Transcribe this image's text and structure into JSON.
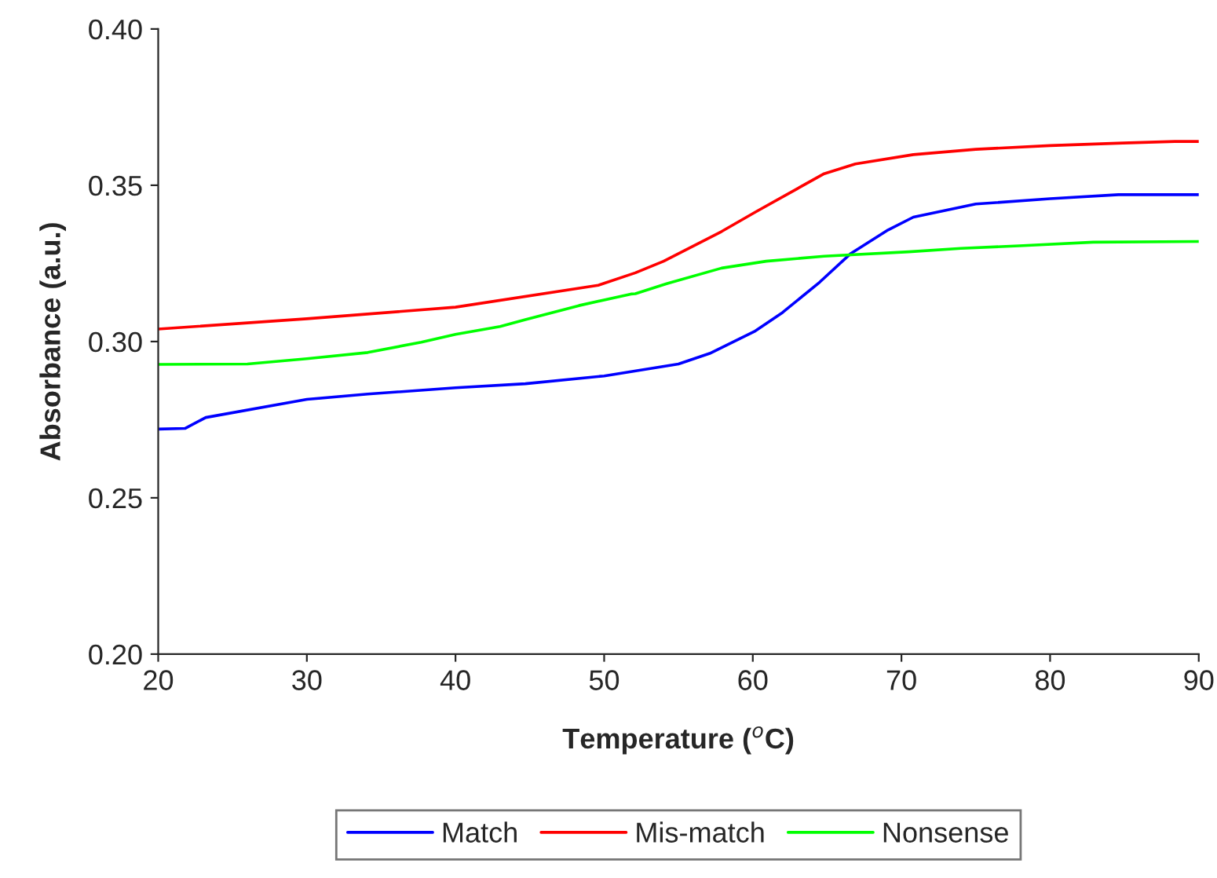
{
  "chart_data": {
    "type": "line",
    "xlabel": "Temperature ($^{o}$C)",
    "ylabel": "Absorbance (a.u.)",
    "xlim": [
      20,
      90
    ],
    "xticks": [
      20,
      30,
      40,
      50,
      60,
      70,
      80,
      90
    ],
    "ylim": [
      0.2,
      0.4
    ],
    "yticks": [
      {
        "value": 0.2,
        "label": "0.20"
      },
      {
        "value": 0.25,
        "label": "0.25"
      },
      {
        "value": 0.3,
        "label": "0.30"
      },
      {
        "value": 0.35,
        "label": "0.35"
      },
      {
        "value": 0.4,
        "label": "0.40"
      }
    ],
    "grid": false,
    "legend": "bottom",
    "marker": "none",
    "line_style": "solid",
    "series": [
      {
        "name": "Match",
        "color": "#0000ff",
        "x": [
          20,
          21.8,
          23.2,
          30,
          34.1,
          40,
          44.7,
          50,
          55,
          57.1,
          60.1,
          62,
          64.5,
          66.6,
          69.1,
          70.8,
          75,
          80,
          84.6,
          90
        ],
        "values": [
          0.272,
          0.2722,
          0.2757,
          0.2815,
          0.2832,
          0.2852,
          0.2865,
          0.289,
          0.2928,
          0.2962,
          0.3032,
          0.3093,
          0.319,
          0.3282,
          0.3357,
          0.3398,
          0.344,
          0.3457,
          0.347,
          0.347
        ]
      },
      {
        "name": "Mis-match",
        "color": "#ff0000",
        "x": [
          20,
          30,
          40,
          49.6,
          52.1,
          54,
          57.9,
          60.2,
          64.8,
          66.9,
          70.8,
          75,
          80,
          84.9,
          88.4,
          90
        ],
        "values": [
          0.304,
          0.3073,
          0.311,
          0.318,
          0.322,
          0.3257,
          0.3352,
          0.3415,
          0.3537,
          0.3568,
          0.3598,
          0.3615,
          0.3627,
          0.3635,
          0.364,
          0.364
        ]
      },
      {
        "name": "Nonsense",
        "color": "#00ff00",
        "x": [
          20,
          26,
          30,
          34.1,
          37.7,
          40,
          43,
          44.7,
          48.3,
          51.8,
          52.1,
          54.2,
          57.9,
          60.9,
          64.8,
          70.5,
          74,
          78.2,
          82.9,
          90
        ],
        "values": [
          0.2927,
          0.2928,
          0.2945,
          0.2965,
          0.2998,
          0.3023,
          0.3048,
          0.307,
          0.3115,
          0.3152,
          0.3153,
          0.3185,
          0.3235,
          0.3257,
          0.3273,
          0.3287,
          0.3298,
          0.3307,
          0.3318,
          0.332
        ]
      }
    ]
  }
}
